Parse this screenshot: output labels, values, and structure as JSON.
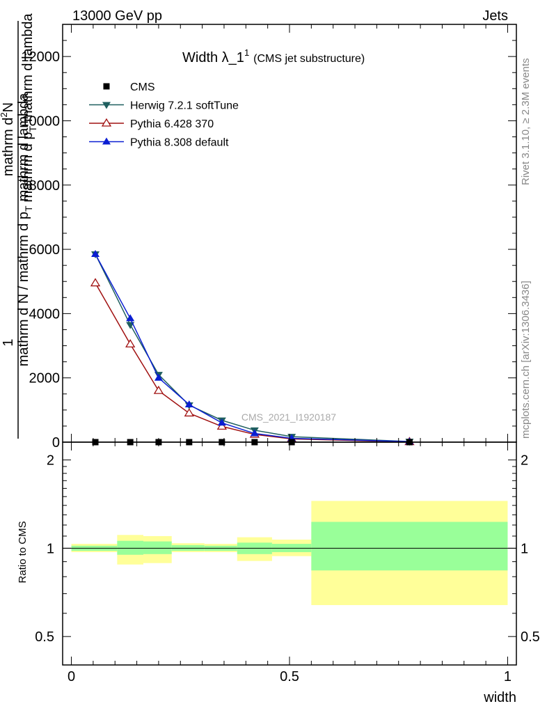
{
  "header": {
    "left": "13000 GeV pp",
    "right": "Jets"
  },
  "side_text": {
    "rivet": "Rivet 3.1.10, ≥ 2.3M events",
    "mcplots": "mcplots.cern.ch [arXiv:1306.3436]"
  },
  "watermark": "CMS_2021_I1920187",
  "chart_data": [
    {
      "type": "line",
      "title": "Width λ_1",
      "title_sup": "1",
      "title_note": "(CMS jet substructure)",
      "ylabel_numerator": "1",
      "ylabel_denominator": "mathrm d N / mathrm d p",
      "ylabel_denominator_sub": "T",
      "ylabel_denominator_tail": "mathrm d lambda",
      "ylabel_right_numerator": "mathrm d",
      "ylabel_right_numerator_sup": "2",
      "ylabel_right_numerator_tail": "N",
      "ylabel_right_denominator": "mathrm d p",
      "ylabel_right_denominator_sub": "T",
      "ylabel_right_denominator_tail": "mathrm d lambda",
      "xlim": [
        -0.02,
        1.02
      ],
      "ylim": [
        0,
        13000
      ],
      "yticks": [
        {
          "value": 0,
          "label": "0"
        },
        {
          "value": 2000,
          "label": "2000"
        },
        {
          "value": 4000,
          "label": "4000"
        },
        {
          "value": 6000,
          "label": "6000"
        },
        {
          "value": 8000,
          "label": "8000"
        },
        {
          "value": 10000,
          "label": "10000"
        },
        {
          "value": 12000,
          "label": "12000"
        }
      ],
      "legend_position": "top-left",
      "series": [
        {
          "name": "CMS",
          "color": "#000000",
          "marker": "square",
          "x": [
            0.055,
            0.135,
            0.2,
            0.27,
            0.345,
            0.42,
            0.505,
            0.775
          ],
          "y": [
            0,
            0,
            0,
            0,
            0,
            0,
            0,
            0
          ]
        },
        {
          "name": "Herwig 7.2.1 softTune",
          "color": "#1f5f5f",
          "marker": "triangle-down",
          "x": [
            0.055,
            0.135,
            0.2,
            0.27,
            0.345,
            0.42,
            0.505,
            0.775
          ],
          "y": [
            5850,
            3650,
            2100,
            1150,
            680,
            370,
            170,
            20
          ]
        },
        {
          "name": "Pythia 6.428 370",
          "color": "#a01010",
          "marker": "triangle-up-open",
          "x": [
            0.055,
            0.135,
            0.2,
            0.27,
            0.345,
            0.42,
            0.505,
            0.775
          ],
          "y": [
            4950,
            3050,
            1600,
            900,
            490,
            240,
            100,
            10
          ]
        },
        {
          "name": "Pythia 8.308 default",
          "color": "#0a1ed2",
          "marker": "triangle-up",
          "x": [
            0.055,
            0.135,
            0.2,
            0.27,
            0.345,
            0.42,
            0.505,
            0.775
          ],
          "y": [
            5850,
            3850,
            2000,
            1170,
            600,
            270,
            120,
            15
          ]
        }
      ]
    },
    {
      "type": "area",
      "ylabel": "Ratio to CMS",
      "xlabel": "width",
      "xlim": [
        -0.02,
        1.02
      ],
      "ylim": [
        0.4,
        2.3
      ],
      "yscale": "log",
      "yticks": [
        {
          "value": 0.5,
          "label": "0.5"
        },
        {
          "value": 1,
          "label": "1"
        },
        {
          "value": 2,
          "label": "2"
        }
      ],
      "xticks": [
        {
          "value": 0,
          "label": "0"
        },
        {
          "value": 0.5,
          "label": "0.5"
        },
        {
          "value": 1,
          "label": "1"
        }
      ],
      "reference_line": 1,
      "bands": {
        "total_color": "#ffff99",
        "stat_color": "#99ff99",
        "bins": [
          {
            "x0": 0.0,
            "x1": 0.105,
            "total_lo": 0.97,
            "total_hi": 1.035,
            "stat_lo": 0.98,
            "stat_hi": 1.02
          },
          {
            "x0": 0.105,
            "x1": 0.165,
            "total_lo": 0.88,
            "total_hi": 1.11,
            "stat_lo": 0.95,
            "stat_hi": 1.06
          },
          {
            "x0": 0.165,
            "x1": 0.23,
            "total_lo": 0.89,
            "total_hi": 1.1,
            "stat_lo": 0.955,
            "stat_hi": 1.055
          },
          {
            "x0": 0.23,
            "x1": 0.305,
            "total_lo": 0.97,
            "total_hi": 1.04,
            "stat_lo": 0.98,
            "stat_hi": 1.025
          },
          {
            "x0": 0.305,
            "x1": 0.38,
            "total_lo": 0.97,
            "total_hi": 1.035,
            "stat_lo": 0.98,
            "stat_hi": 1.02
          },
          {
            "x0": 0.38,
            "x1": 0.46,
            "total_lo": 0.905,
            "total_hi": 1.09,
            "stat_lo": 0.955,
            "stat_hi": 1.045
          },
          {
            "x0": 0.46,
            "x1": 0.55,
            "total_lo": 0.94,
            "total_hi": 1.07,
            "stat_lo": 0.97,
            "stat_hi": 1.035
          },
          {
            "x0": 0.55,
            "x1": 1.0,
            "total_lo": 0.64,
            "total_hi": 1.45,
            "stat_lo": 0.84,
            "stat_hi": 1.23
          }
        ]
      }
    }
  ]
}
